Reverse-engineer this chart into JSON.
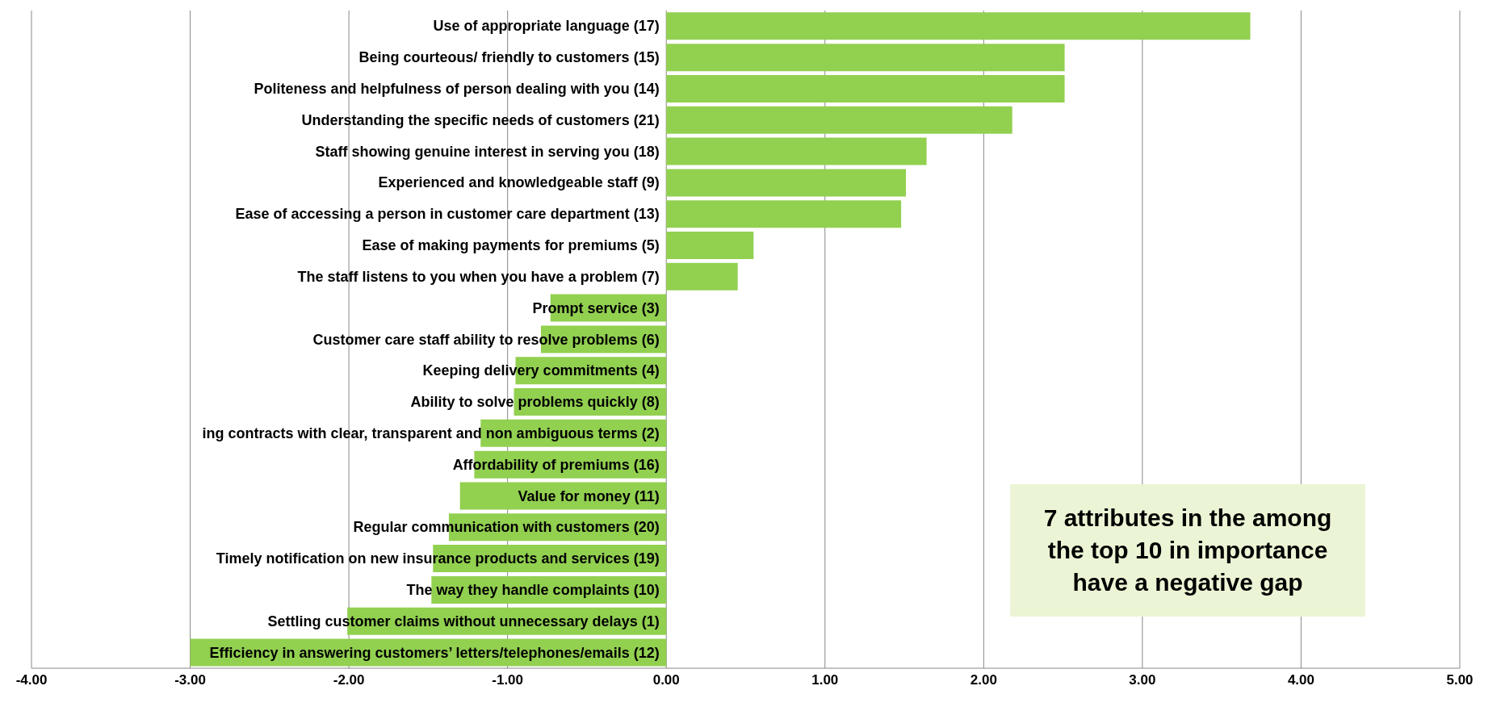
{
  "chart_data": {
    "type": "bar",
    "orientation": "horizontal",
    "categories": [
      "Use of appropriate language (17)",
      "Being courteous/ friendly to customers  (15)",
      "Politeness and helpfulness of person dealing with you (14)",
      "Understanding the specific needs of customers (21)",
      "Staff showing genuine interest in serving you (18)",
      "Experienced and knowledgeable staff (9)",
      "Ease of accessing a person in customer care department (13)",
      "Ease of making payments for premiums (5)",
      "The staff  listens to you when you have a problem (7)",
      "Prompt service (3)",
      "Customer care staff ability to resolve problems (6)",
      "Keeping delivery commitments (4)",
      "Ability to solve problems quickly (8)",
      "ing contracts with clear, transparent and non ambiguous terms (2)",
      "Affordability of premiums (16)",
      "Value for money (11)",
      "Regular communication with customers (20)",
      "Timely notification on new insurance products and services (19)",
      "The way they handle complaints (10)",
      "Settling customer claims without unnecessary delays (1)",
      "Efficiency in answering customers’ letters/telephones/emails (12)"
    ],
    "values": [
      3.68,
      2.51,
      2.51,
      2.18,
      1.64,
      1.51,
      1.48,
      0.55,
      0.45,
      -0.73,
      -0.79,
      -0.95,
      -0.96,
      -1.17,
      -1.21,
      -1.3,
      -1.37,
      -1.47,
      -1.48,
      -2.01,
      -3.0
    ],
    "color": "#92d050",
    "xlim": [
      -4,
      5
    ],
    "xticks": [
      {
        "value": -4,
        "label": "-4.00"
      },
      {
        "value": -3,
        "label": "-3.00"
      },
      {
        "value": -2,
        "label": "-2.00"
      },
      {
        "value": -1,
        "label": "-1.00"
      },
      {
        "value": 0,
        "label": "0.00"
      },
      {
        "value": 1,
        "label": "1.00"
      },
      {
        "value": 2,
        "label": "2.00"
      },
      {
        "value": 3,
        "label": "3.00"
      },
      {
        "value": 4,
        "label": "4.00"
      },
      {
        "value": 5,
        "label": "5.00"
      }
    ],
    "grid": "x",
    "annotations": [
      "7 attributes in the among the top 10 in importance have a negative gap"
    ]
  }
}
